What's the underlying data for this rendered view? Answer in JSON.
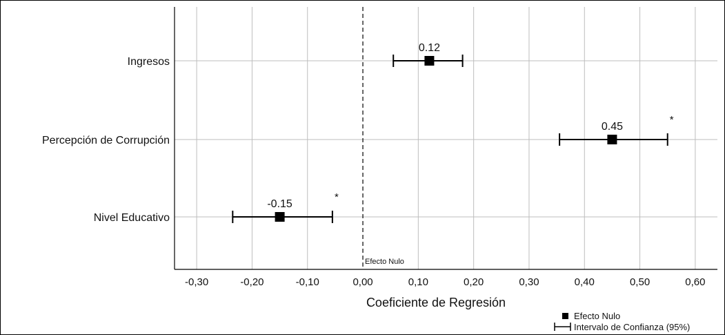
{
  "chart_data": {
    "type": "forest",
    "xlabel": "Coeficiente de Regresión",
    "xlim": [
      -0.34,
      0.64
    ],
    "x_ticks": [
      -0.3,
      -0.2,
      -0.1,
      0.0,
      0.1,
      0.2,
      0.3,
      0.4,
      0.5,
      0.6
    ],
    "x_tick_labels": [
      "-0,30",
      "-0,20",
      "-0,10",
      "0,00",
      "0,10",
      "0,20",
      "0,30",
      "0,40",
      "0,50",
      "0,60"
    ],
    "grid": true,
    "reference_line": {
      "x": 0,
      "style": "dashed",
      "label": "Efecto Nulo"
    },
    "categories": [
      "Ingresos",
      "Percepción de Corrupción",
      "Nivel Educativo"
    ],
    "estimates": [
      {
        "category": "Ingresos",
        "value": 0.12,
        "label": "0.12",
        "ci_low": 0.055,
        "ci_high": 0.18,
        "significant": false
      },
      {
        "category": "Percepción de Corrupción",
        "value": 0.45,
        "label": "0.45",
        "ci_low": 0.355,
        "ci_high": 0.55,
        "significant": true
      },
      {
        "category": "Nivel Educativo",
        "value": -0.15,
        "label": "-0.15",
        "ci_low": -0.235,
        "ci_high": -0.055,
        "significant": true
      }
    ],
    "significance_marker": "*",
    "legend": {
      "placement": "bottom-right",
      "entries": [
        {
          "symbol": "square",
          "label": "Efecto Nulo"
        },
        {
          "symbol": "errorbar",
          "label": "Intervalo de Confianza (95%)"
        }
      ]
    }
  }
}
